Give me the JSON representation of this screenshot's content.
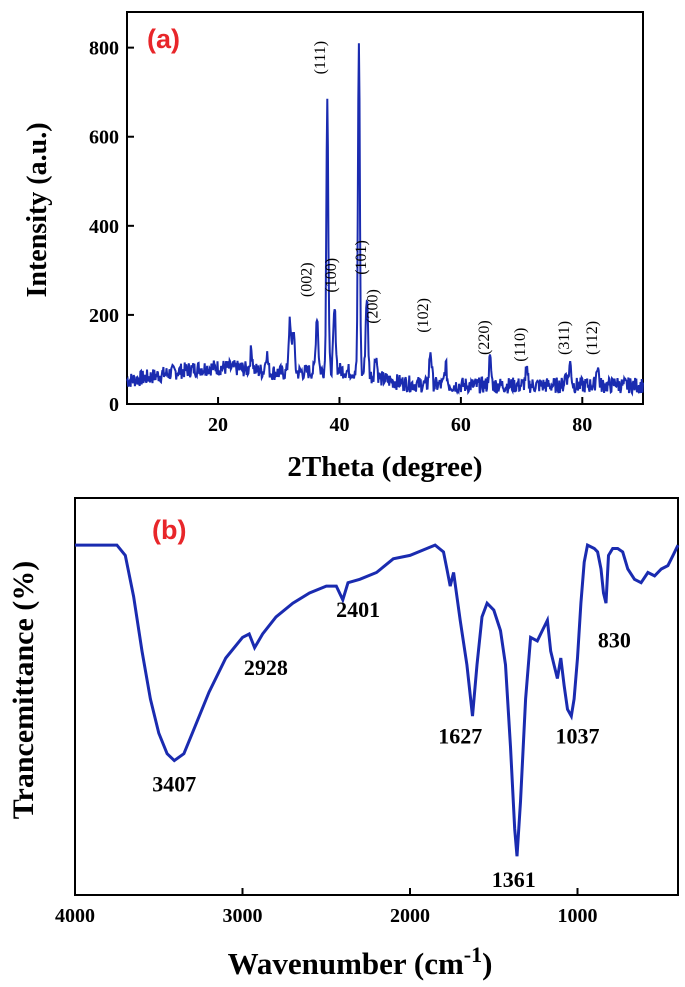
{
  "colors": {
    "series": "#1a2bb0",
    "panel_label": "#e8262a",
    "axis": "#000000"
  },
  "chart_data": [
    {
      "type": "line",
      "panel_label": "(a)",
      "xlabel": "2Theta (degree)",
      "ylabel": "Intensity (a.u.)",
      "xlim": [
        5,
        90
      ],
      "ylim": [
        0,
        880
      ],
      "xticks": [
        "20",
        "40",
        "60",
        "80"
      ],
      "yticks": [
        "0",
        "200",
        "400",
        "600",
        "800"
      ],
      "peaks": [
        {
          "x": 25.5,
          "y": 120
        },
        {
          "x": 28.0,
          "y": 115
        },
        {
          "x": 31.8,
          "y": 180
        },
        {
          "x": 32.4,
          "y": 165
        },
        {
          "x": 36.3,
          "y": 200
        },
        {
          "x": 38.0,
          "y": 700
        },
        {
          "x": 39.2,
          "y": 210
        },
        {
          "x": 43.2,
          "y": 815
        },
        {
          "x": 44.5,
          "y": 240
        },
        {
          "x": 46.0,
          "y": 110
        },
        {
          "x": 55.0,
          "y": 120
        },
        {
          "x": 57.5,
          "y": 85
        },
        {
          "x": 64.8,
          "y": 100
        },
        {
          "x": 70.8,
          "y": 72
        },
        {
          "x": 77.3,
          "y": 68
        },
        {
          "x": 78.0,
          "y": 90
        },
        {
          "x": 82.5,
          "y": 88
        },
        {
          "x": 85.5,
          "y": 50
        }
      ],
      "annotations": [
        {
          "text": "(111)",
          "x": 37.6,
          "y": 740
        },
        {
          "text": "(002)",
          "x": 35.4,
          "y": 240
        },
        {
          "text": "(100)",
          "x": 39.4,
          "y": 250
        },
        {
          "text": "(101)",
          "x": 44.4,
          "y": 290
        },
        {
          "text": "(200)",
          "x": 46.3,
          "y": 180
        },
        {
          "text": "(102)",
          "x": 54.6,
          "y": 160
        },
        {
          "text": "(220)",
          "x": 64.6,
          "y": 110
        },
        {
          "text": "(110)",
          "x": 70.6,
          "y": 95
        },
        {
          "text": "(311)",
          "x": 77.8,
          "y": 110
        },
        {
          "text": "(112)",
          "x": 82.4,
          "y": 110
        }
      ]
    },
    {
      "type": "line",
      "panel_label": "(b)",
      "xlabel": "Wavenumber (cm",
      "xlabel_sup": "-1",
      "xlabel_end": ")",
      "ylabel": "Trancemittance (%)",
      "xlim": [
        4000,
        400
      ],
      "ylim": [
        0,
        100
      ],
      "xticks": [
        "4000",
        "3000",
        "2000",
        "1000"
      ],
      "points": [
        [
          4000,
          95
        ],
        [
          3750,
          95
        ],
        [
          3700,
          92
        ],
        [
          3650,
          80
        ],
        [
          3600,
          64
        ],
        [
          3550,
          50
        ],
        [
          3500,
          40
        ],
        [
          3450,
          34
        ],
        [
          3407,
          32
        ],
        [
          3350,
          34
        ],
        [
          3300,
          40
        ],
        [
          3200,
          52
        ],
        [
          3100,
          62
        ],
        [
          3000,
          68
        ],
        [
          2960,
          69
        ],
        [
          2928,
          65
        ],
        [
          2880,
          69
        ],
        [
          2800,
          74
        ],
        [
          2700,
          78
        ],
        [
          2600,
          81
        ],
        [
          2500,
          83
        ],
        [
          2440,
          83
        ],
        [
          2401,
          79
        ],
        [
          2370,
          84
        ],
        [
          2300,
          85
        ],
        [
          2200,
          87
        ],
        [
          2100,
          91
        ],
        [
          2000,
          92
        ],
        [
          1900,
          94
        ],
        [
          1850,
          95
        ],
        [
          1800,
          93
        ],
        [
          1780,
          88
        ],
        [
          1760,
          83
        ],
        [
          1740,
          87
        ],
        [
          1720,
          80
        ],
        [
          1700,
          73
        ],
        [
          1660,
          60
        ],
        [
          1627,
          45
        ],
        [
          1600,
          60
        ],
        [
          1570,
          74
        ],
        [
          1540,
          78
        ],
        [
          1500,
          76
        ],
        [
          1460,
          70
        ],
        [
          1430,
          60
        ],
        [
          1400,
          36
        ],
        [
          1375,
          12
        ],
        [
          1361,
          4
        ],
        [
          1340,
          20
        ],
        [
          1310,
          50
        ],
        [
          1280,
          68
        ],
        [
          1240,
          67
        ],
        [
          1210,
          70
        ],
        [
          1180,
          73
        ],
        [
          1160,
          64
        ],
        [
          1140,
          60
        ],
        [
          1120,
          56
        ],
        [
          1100,
          62
        ],
        [
          1080,
          54
        ],
        [
          1060,
          47
        ],
        [
          1037,
          45
        ],
        [
          1020,
          50
        ],
        [
          1000,
          62
        ],
        [
          980,
          78
        ],
        [
          960,
          90
        ],
        [
          940,
          95
        ],
        [
          900,
          94
        ],
        [
          880,
          93
        ],
        [
          860,
          88
        ],
        [
          845,
          81
        ],
        [
          830,
          78
        ],
        [
          815,
          92
        ],
        [
          790,
          94
        ],
        [
          760,
          94
        ],
        [
          730,
          93
        ],
        [
          700,
          88
        ],
        [
          660,
          85
        ],
        [
          620,
          84
        ],
        [
          580,
          87
        ],
        [
          540,
          86
        ],
        [
          500,
          88
        ],
        [
          460,
          89
        ],
        [
          430,
          92
        ],
        [
          400,
          95
        ]
      ],
      "annotations": [
        {
          "text": "3407",
          "x": 3407,
          "y": 23
        },
        {
          "text": "2928",
          "x": 2860,
          "y": 57
        },
        {
          "text": "2401",
          "x": 2310,
          "y": 74
        },
        {
          "text": "1627",
          "x": 1700,
          "y": 37
        },
        {
          "text": "1361",
          "x": 1380,
          "y": -5
        },
        {
          "text": "1037",
          "x": 1000,
          "y": 37
        },
        {
          "text": "830",
          "x": 780,
          "y": 65
        }
      ]
    }
  ]
}
